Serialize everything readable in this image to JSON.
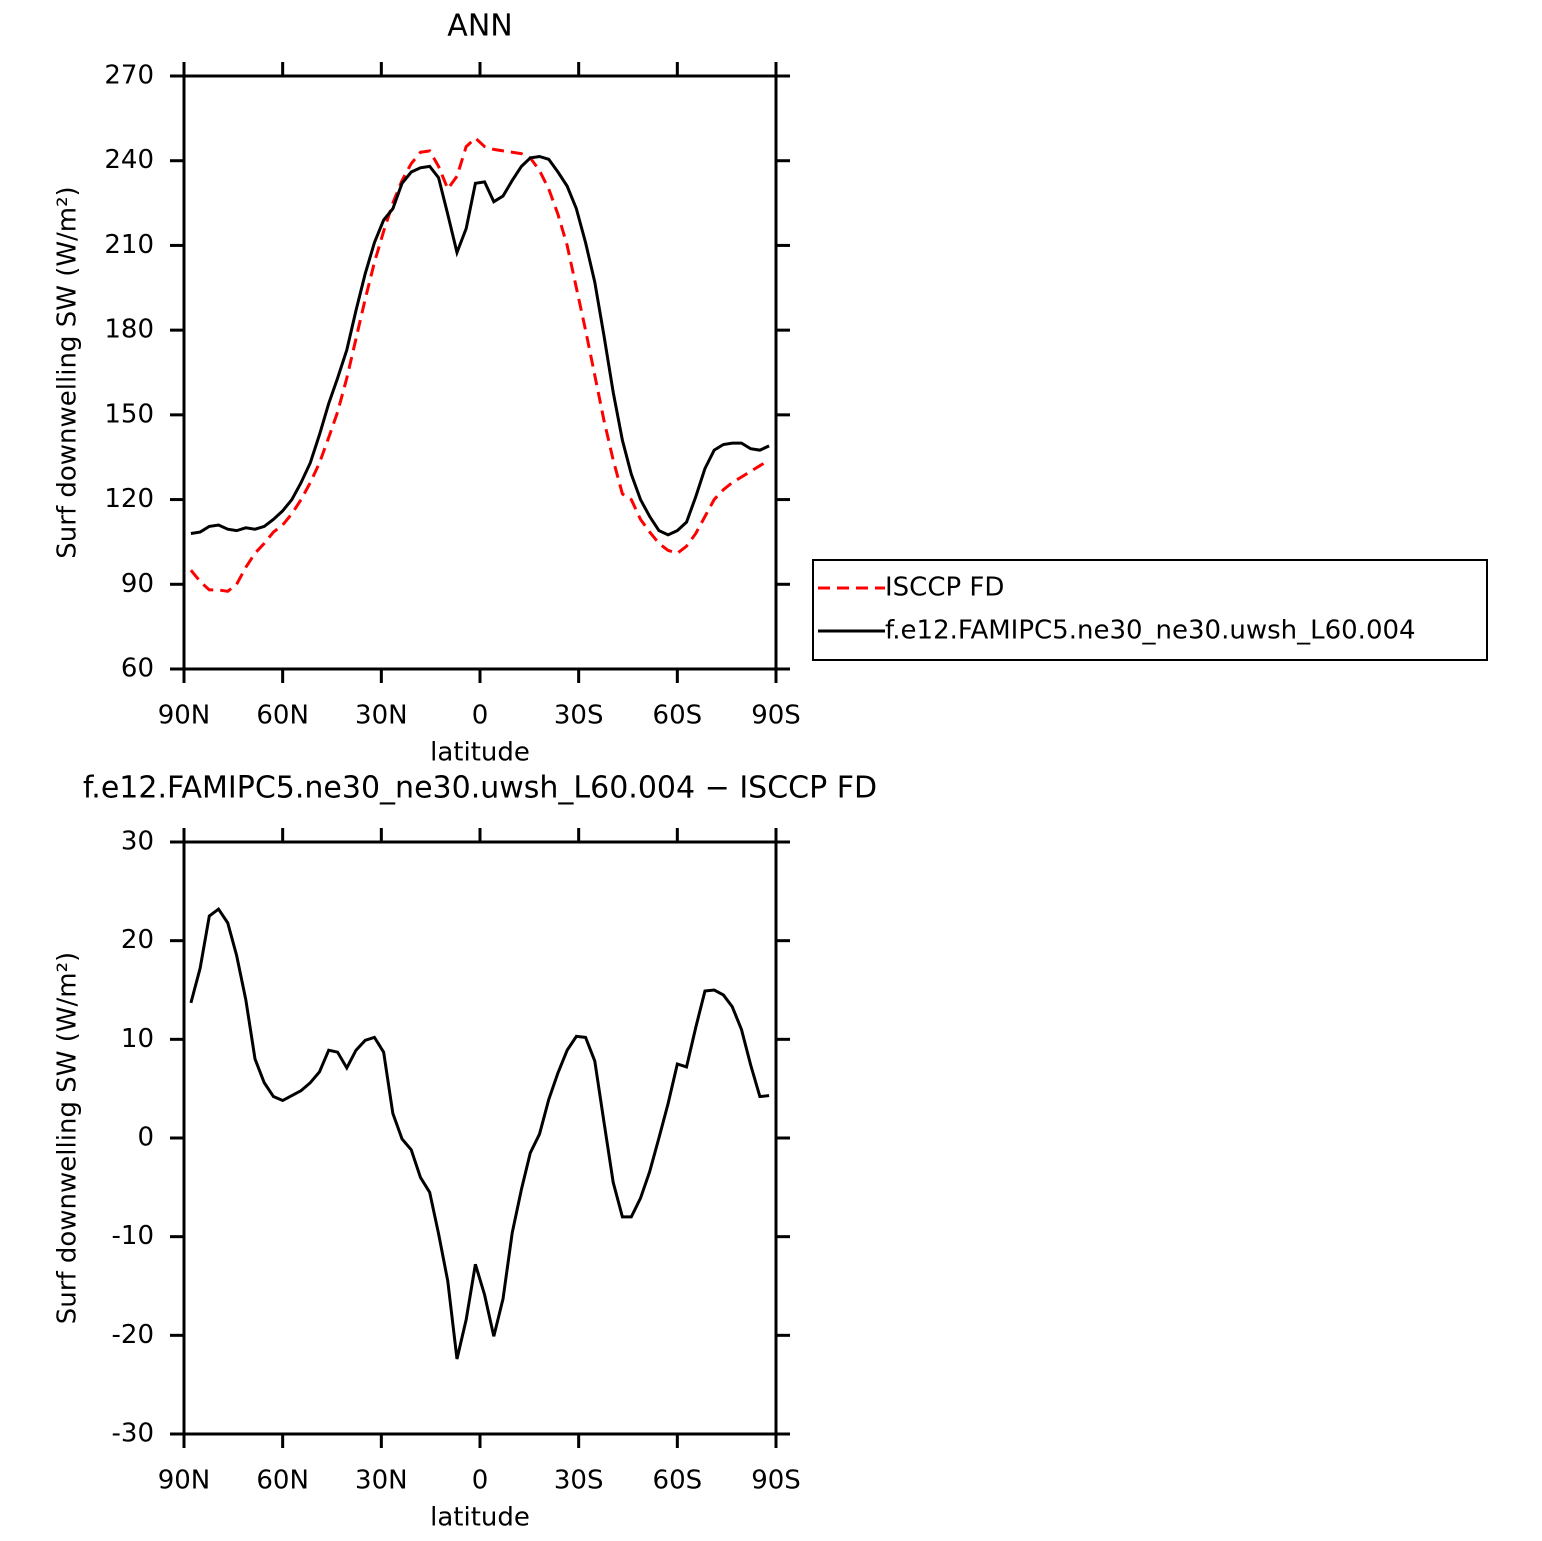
{
  "chart_data": [
    {
      "type": "line",
      "title": "ANN",
      "xlabel": "latitude",
      "ylabel": "Surf downwelling SW (W/m²)",
      "x": [
        87.9,
        85.1,
        82.3,
        79.5,
        76.7,
        74.0,
        71.2,
        68.4,
        65.6,
        62.8,
        60.0,
        57.2,
        54.4,
        51.6,
        48.8,
        46.0,
        43.3,
        40.5,
        37.7,
        34.9,
        32.1,
        29.3,
        26.5,
        23.7,
        20.9,
        18.1,
        15.3,
        12.6,
        9.8,
        7.0,
        4.2,
        1.4,
        -1.4,
        -4.2,
        -7.0,
        -9.8,
        -12.6,
        -15.3,
        -18.1,
        -20.9,
        -23.7,
        -26.5,
        -29.3,
        -32.1,
        -34.9,
        -37.7,
        -40.5,
        -43.3,
        -46.0,
        -48.8,
        -51.6,
        -54.4,
        -57.2,
        -60.0,
        -62.8,
        -65.6,
        -68.4,
        -71.2,
        -74.0,
        -76.7,
        -79.5,
        -82.3,
        -85.1,
        -87.9
      ],
      "series": [
        {
          "name": "ISCCP FD",
          "color": "#ff0000",
          "line_style": "dashed",
          "values": [
            95,
            91,
            88,
            88,
            87.5,
            90,
            96,
            101,
            104.5,
            108.5,
            111,
            115,
            120,
            126,
            133,
            142,
            151,
            163,
            177,
            191,
            204,
            215,
            225,
            233,
            239,
            243,
            243.5,
            238,
            230,
            234.5,
            245,
            248,
            245,
            244,
            243.5,
            243,
            242.5,
            241,
            236.5,
            230,
            221,
            210,
            195,
            180,
            164,
            148,
            134,
            122,
            120,
            113,
            108.5,
            104.5,
            102,
            101,
            103.5,
            108,
            114,
            120,
            123.5,
            126,
            128,
            130,
            132,
            134
          ]
        },
        {
          "name": "f.e12.FAMIPC5.ne30_ne30.uwsh_L60.004",
          "color": "#000000",
          "line_style": "solid",
          "values": [
            108,
            108.5,
            110.5,
            111,
            109.5,
            109,
            110,
            109.5,
            110.5,
            113,
            116,
            120,
            126,
            133,
            143,
            154,
            163,
            173,
            187,
            200,
            211,
            219,
            223,
            232,
            236,
            237.5,
            238,
            234,
            221,
            207.5,
            216,
            232,
            232.5,
            225.5,
            227.5,
            233,
            238,
            241,
            241.5,
            240.5,
            236,
            231,
            223,
            211,
            197,
            178,
            158,
            141,
            129,
            120,
            114,
            109,
            107.5,
            109,
            112,
            121,
            131,
            137.5,
            139.5,
            140,
            140,
            138,
            137.5,
            139
          ]
        }
      ],
      "xlim": [
        90,
        -90
      ],
      "xticks": [
        {
          "value": 90,
          "label": "90N"
        },
        {
          "value": 60,
          "label": "60N"
        },
        {
          "value": 30,
          "label": "30N"
        },
        0,
        {
          "value": -30,
          "label": "30S"
        },
        {
          "value": -60,
          "label": "60S"
        },
        {
          "value": -90,
          "label": "90S"
        }
      ],
      "ylim": [
        60,
        270
      ],
      "yticks": [
        60,
        90,
        120,
        150,
        180,
        210,
        240,
        270
      ],
      "legend": "right"
    },
    {
      "type": "line",
      "title": "f.e12.FAMIPC5.ne30_ne30.uwsh_L60.004 − ISCCP FD",
      "xlabel": "latitude",
      "ylabel": "Surf downwelling SW (W/m²)",
      "x": [
        87.9,
        85.1,
        82.3,
        79.5,
        76.7,
        74.0,
        71.2,
        68.4,
        65.6,
        62.8,
        60.0,
        57.2,
        54.4,
        51.6,
        48.8,
        46.0,
        43.3,
        40.5,
        37.7,
        34.9,
        32.1,
        29.3,
        26.5,
        23.7,
        20.9,
        18.1,
        15.3,
        12.6,
        9.8,
        7.0,
        4.2,
        1.4,
        -1.4,
        -4.2,
        -7.0,
        -9.8,
        -12.6,
        -15.3,
        -18.1,
        -20.9,
        -23.7,
        -26.5,
        -29.3,
        -32.1,
        -34.9,
        -37.7,
        -40.5,
        -43.3,
        -46.0,
        -48.8,
        -51.6,
        -54.4,
        -57.2,
        -60.0,
        -62.8,
        -65.6,
        -68.4,
        -71.2,
        -74.0,
        -76.7,
        -79.5,
        -82.3,
        -85.1,
        -87.9
      ],
      "series": [
        {
          "color": "#000000",
          "line_style": "solid",
          "values": [
            13.7,
            17.2,
            22.5,
            23.2,
            21.8,
            18.5,
            14,
            8,
            5.6,
            4.2,
            3.8,
            4.3,
            4.8,
            5.6,
            6.7,
            8.9,
            8.7,
            7.1,
            8.9,
            9.9,
            10.2,
            8.7,
            2.5,
            -0.1,
            -1.2,
            -4,
            -5.5,
            -9.7,
            -14.5,
            -22.4,
            -18.4,
            -12.8,
            -15.9,
            -20.1,
            -16.3,
            -9.6,
            -5.2,
            -1.5,
            0.4,
            3.9,
            6.6,
            8.9,
            10.3,
            10.2,
            7.8,
            1.6,
            -4.5,
            -8,
            -8,
            -6.1,
            -3.4,
            0,
            3.5,
            7.5,
            7.2,
            11.2,
            14.9,
            15,
            14.5,
            13.3,
            11,
            7.4,
            4.2,
            4.3
          ]
        }
      ],
      "xlim": [
        90,
        -90
      ],
      "xticks": [
        {
          "value": 90,
          "label": "90N"
        },
        {
          "value": 60,
          "label": "60N"
        },
        {
          "value": 30,
          "label": "30N"
        },
        0,
        {
          "value": -30,
          "label": "30S"
        },
        {
          "value": -60,
          "label": "60S"
        },
        {
          "value": -90,
          "label": "90S"
        }
      ],
      "ylim": [
        -30,
        30
      ],
      "yticks": [
        -30,
        -20,
        -10,
        0,
        10,
        20,
        30
      ]
    }
  ]
}
